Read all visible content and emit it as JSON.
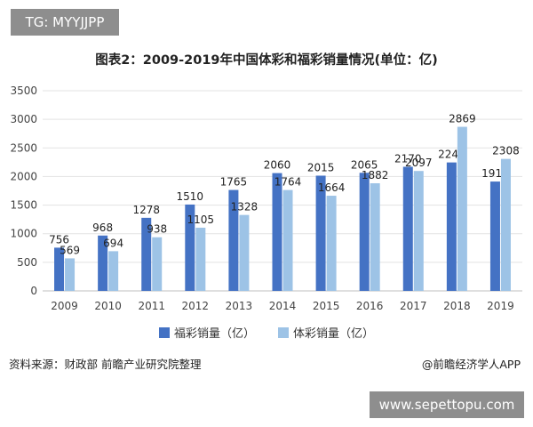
{
  "watermark_tag": "TG: MYYJJPP",
  "footer": {
    "source": "资料来源：财政部 前瞻产业研究院整理",
    "credit": "@前瞻经济学人APP",
    "site": "www.sepettopu.com"
  },
  "colors": {
    "welfare": "#4472c4",
    "sports": "#9dc3e6"
  },
  "chart_data": {
    "type": "bar",
    "title": "图表2：2009-2019年中国体彩和福彩销量情况(单位：亿)",
    "categories": [
      "2009",
      "2010",
      "2011",
      "2012",
      "2013",
      "2014",
      "2015",
      "2016",
      "2017",
      "2018",
      "2019"
    ],
    "series": [
      {
        "name": "福彩销量（亿）",
        "values": [
          756,
          968,
          1278,
          1510,
          1765,
          2060,
          2015,
          2065,
          2170,
          2246,
          1912
        ]
      },
      {
        "name": "体彩销量（亿）",
        "values": [
          569,
          694,
          938,
          1105,
          1328,
          1764,
          1664,
          1882,
          2097,
          2869,
          2308
        ]
      }
    ],
    "ylim": [
      0,
      3500
    ],
    "yticks": [
      0,
      500,
      1000,
      1500,
      2000,
      2500,
      3000,
      3500
    ],
    "grid": true,
    "legend_position": "bottom"
  }
}
